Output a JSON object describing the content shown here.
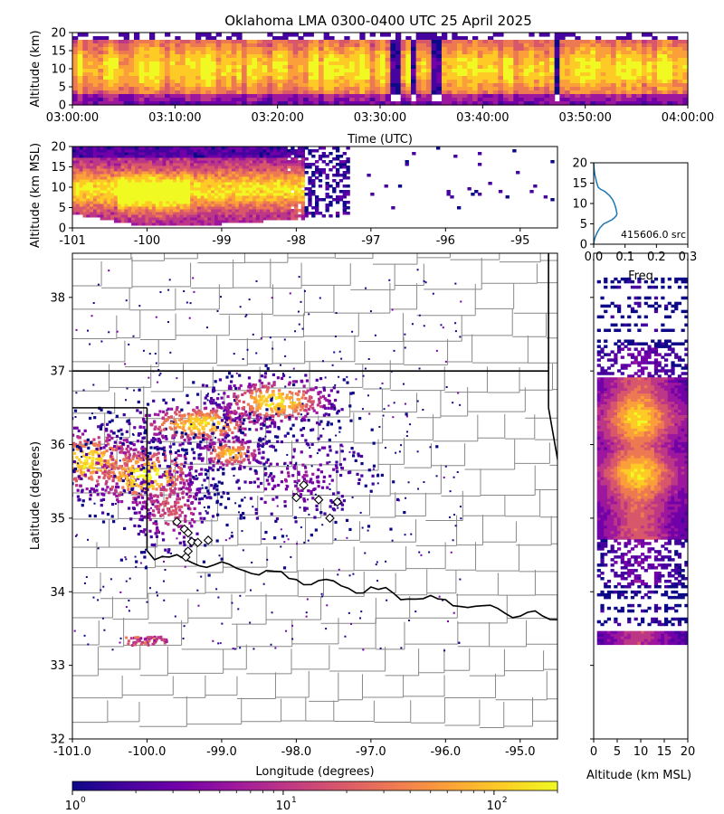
{
  "title": "Oklahoma LMA 0300-0400 UTC 25 April 2025",
  "colors": {
    "plasma": [
      "#0d0887",
      "#46039f",
      "#7201a8",
      "#9c179e",
      "#bd3786",
      "#d8576b",
      "#ed7953",
      "#fb9f3a",
      "#fdca26",
      "#f0f921"
    ],
    "map_lines": "#888888",
    "state_lines": "#000000",
    "dist_line": "#1f77b4"
  },
  "chart_data": [
    {
      "id": "time_height",
      "type": "heatmap",
      "xlabel": "Time (UTC)",
      "ylabel": "Altitude (km)",
      "xticks": [
        "03:00:00",
        "03:10:00",
        "03:20:00",
        "03:30:00",
        "03:40:00",
        "03:50:00",
        "04:00:00"
      ],
      "xlim_minutes": [
        0,
        60
      ],
      "yticks": [
        "0",
        "5",
        "10",
        "15",
        "20"
      ],
      "ylim": [
        0,
        20
      ],
      "gaps_minutes": [
        31.5,
        33.2,
        35.5,
        47.2
      ],
      "density_altitude_range_km": [
        1,
        18
      ]
    },
    {
      "id": "lon_height",
      "type": "heatmap",
      "ylabel": "Altitude (km MSL)",
      "xticks": [
        "-101",
        "-100",
        "-99",
        "-98",
        "-97",
        "-96",
        "-95"
      ],
      "xlim": [
        -101,
        -94.5
      ],
      "yticks": [
        "0",
        "5",
        "10",
        "15",
        "20"
      ],
      "ylim": [
        0,
        20
      ]
    },
    {
      "id": "altitude_histogram",
      "type": "line",
      "xlabel": "Freq",
      "xticks": [
        "0.0",
        "0.1",
        "0.2",
        "0.3"
      ],
      "xlim": [
        0,
        0.3
      ],
      "yticks": [
        "0",
        "5",
        "10",
        "15",
        "20"
      ],
      "ylim": [
        0,
        20
      ],
      "source_label": "415606.0 src",
      "x": [
        0,
        0.002,
        0.006,
        0.012,
        0.02,
        0.032,
        0.045,
        0.058,
        0.066,
        0.072,
        0.074,
        0.073,
        0.07,
        0.066,
        0.06,
        0.05,
        0.035,
        0.022,
        0.014,
        0.01,
        0.007,
        0.004,
        0.002,
        0
      ],
      "y": [
        0,
        1,
        2,
        3,
        4,
        5,
        5.5,
        6,
        6.5,
        7,
        7.5,
        8,
        9,
        10,
        11,
        12,
        13,
        13.5,
        14,
        15,
        16,
        17,
        18,
        20
      ]
    },
    {
      "id": "plan_view",
      "type": "heatmap",
      "xlabel": "Longitude (degrees)",
      "ylabel": "Latitude (degrees)",
      "xticks": [
        "-101.0",
        "-100.0",
        "-99.0",
        "-98.0",
        "-97.0",
        "-96.0",
        "-95.0"
      ],
      "xlim": [
        -101,
        -94.5
      ],
      "yticks": [
        "32",
        "33",
        "34",
        "35",
        "36",
        "37",
        "38"
      ],
      "ylim": [
        32,
        38.6
      ],
      "stations": [
        [
          -99.6,
          34.95
        ],
        [
          -99.5,
          34.85
        ],
        [
          -99.45,
          34.8
        ],
        [
          -99.4,
          34.68
        ],
        [
          -99.32,
          34.67
        ],
        [
          -99.18,
          34.7
        ],
        [
          -99.45,
          34.55
        ],
        [
          -99.48,
          34.47
        ],
        [
          -98.0,
          35.28
        ],
        [
          -97.9,
          35.45
        ],
        [
          -97.7,
          35.25
        ],
        [
          -97.45,
          35.22
        ],
        [
          -97.55,
          35.0
        ]
      ]
    },
    {
      "id": "height_lat",
      "type": "heatmap",
      "xlabel": "Altitude (km MSL)",
      "xticks": [
        "0",
        "5",
        "10",
        "15",
        "20"
      ],
      "xlim": [
        0,
        20
      ]
    },
    {
      "id": "colorbar",
      "type": "colorbar",
      "scale": "log",
      "ticks": [
        "10",
        "10",
        "10"
      ],
      "tick_exponents": [
        "0",
        "1",
        "2"
      ],
      "range": [
        1,
        200
      ]
    }
  ]
}
